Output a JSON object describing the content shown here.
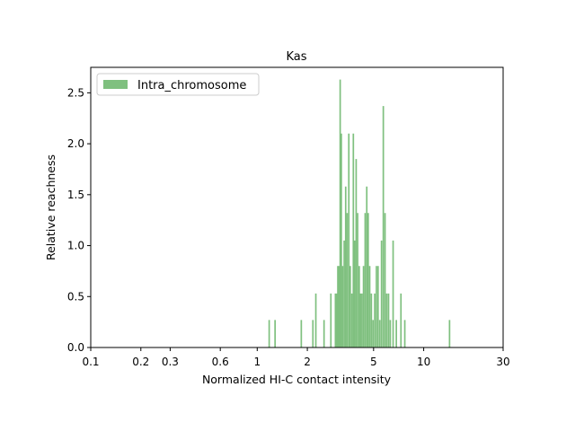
{
  "chart_data": {
    "type": "bar",
    "title": "Kas",
    "xlabel": "Normalized HI-C contact intensity",
    "ylabel": "Relative reachness",
    "xscale": "log",
    "xlim": [
      0.1,
      30
    ],
    "ylim": [
      0,
      2.75
    ],
    "x_ticks": [
      0.1,
      0.2,
      0.3,
      0.6,
      1,
      2,
      5,
      10,
      30
    ],
    "x_tick_labels": [
      "0.1",
      "0.2",
      "0.3",
      "0.6",
      "1",
      "2",
      "5",
      "10",
      "30"
    ],
    "y_ticks": [
      0,
      0.5,
      1.0,
      1.5,
      2.0,
      2.5
    ],
    "y_tick_labels": [
      "0.0",
      "0.5",
      "1.0",
      "1.5",
      "2.0",
      "2.5"
    ],
    "legend_position": "top-left",
    "series": [
      {
        "name": "Intra_chromosome",
        "color": "#7fc07f",
        "bin_width_log10": 0.0092,
        "x": [
          1.18,
          1.28,
          1.84,
          2.16,
          2.25,
          2.52,
          2.77,
          2.95,
          3.0,
          3.05,
          3.1,
          3.15,
          3.2,
          3.26,
          3.33,
          3.4,
          3.47,
          3.55,
          3.62,
          3.7,
          3.78,
          3.85,
          3.93,
          4.01,
          4.1,
          4.18,
          4.26,
          4.35,
          4.45,
          4.55,
          4.64,
          4.74,
          4.85,
          4.96,
          5.08,
          5.2,
          5.32,
          5.45,
          5.58,
          5.72,
          5.86,
          6.0,
          6.15,
          6.3,
          6.55,
          6.85,
          7.3,
          7.7,
          14.3
        ],
        "values": [
          0.27,
          0.27,
          0.27,
          0.27,
          0.53,
          0.27,
          0.53,
          0.53,
          0.53,
          0.8,
          0.8,
          2.63,
          2.1,
          0.8,
          1.05,
          1.58,
          1.32,
          2.1,
          0.8,
          0.53,
          2.1,
          1.05,
          1.85,
          1.32,
          0.8,
          0.53,
          0.53,
          0.8,
          1.32,
          1.58,
          1.32,
          0.8,
          0.53,
          0.27,
          0.53,
          0.8,
          0.8,
          0.27,
          1.05,
          2.37,
          1.32,
          0.53,
          0.53,
          0.27,
          1.05,
          0.27,
          0.53,
          0.27,
          0.27
        ]
      }
    ]
  }
}
